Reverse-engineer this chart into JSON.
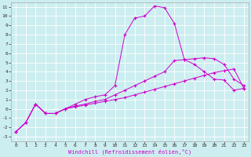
{
  "xlabel": "Windchill (Refroidissement éolien,°C)",
  "bg_color": "#cceef0",
  "grid_color": "#ffffff",
  "line_color": "#cc00cc",
  "x_ticks": [
    0,
    1,
    2,
    3,
    4,
    5,
    6,
    7,
    8,
    9,
    10,
    11,
    12,
    13,
    14,
    15,
    16,
    17,
    18,
    19,
    20,
    21,
    22,
    23
  ],
  "y_ticks": [
    -3,
    -2,
    -1,
    0,
    1,
    2,
    3,
    4,
    5,
    6,
    7,
    8,
    9,
    10,
    11
  ],
  "xlim": [
    -0.5,
    23.5
  ],
  "ylim": [
    -3.5,
    11.5
  ],
  "line1_x": [
    0,
    1,
    2,
    3,
    4,
    5,
    6,
    7,
    8,
    9,
    10,
    11,
    12,
    13,
    14,
    15,
    16,
    17,
    18,
    19,
    20,
    21,
    22,
    23
  ],
  "line1_y": [
    -2.5,
    -1.5,
    0.5,
    -0.5,
    -0.5,
    0.0,
    0.5,
    1.0,
    1.3,
    1.5,
    2.5,
    8.0,
    9.8,
    10.0,
    11.1,
    10.9,
    9.2,
    5.3,
    4.8,
    4.0,
    3.2,
    3.1,
    2.0,
    2.2
  ],
  "line2_x": [
    0,
    1,
    2,
    3,
    4,
    5,
    6,
    7,
    8,
    9,
    10,
    11,
    12,
    13,
    14,
    15,
    16,
    17,
    18,
    19,
    20,
    21,
    22,
    23
  ],
  "line2_y": [
    -2.5,
    -1.5,
    0.5,
    -0.5,
    -0.5,
    0.0,
    0.3,
    0.5,
    0.8,
    1.0,
    1.5,
    2.0,
    2.5,
    3.0,
    3.5,
    4.0,
    5.2,
    5.3,
    5.4,
    5.5,
    5.4,
    4.8,
    3.2,
    2.5
  ],
  "line3_x": [
    0,
    1,
    2,
    3,
    4,
    5,
    6,
    7,
    8,
    9,
    10,
    11,
    12,
    13,
    14,
    15,
    16,
    17,
    18,
    19,
    20,
    21,
    22,
    23
  ],
  "line3_y": [
    -2.5,
    -1.5,
    0.5,
    -0.5,
    -0.5,
    0.0,
    0.2,
    0.4,
    0.6,
    0.8,
    1.0,
    1.2,
    1.5,
    1.8,
    2.1,
    2.4,
    2.7,
    3.0,
    3.3,
    3.6,
    3.9,
    4.1,
    4.3,
    2.2
  ],
  "tick_fontsize": 4.5,
  "xlabel_fontsize": 5.0,
  "marker_size": 2.5,
  "line_width": 0.7
}
